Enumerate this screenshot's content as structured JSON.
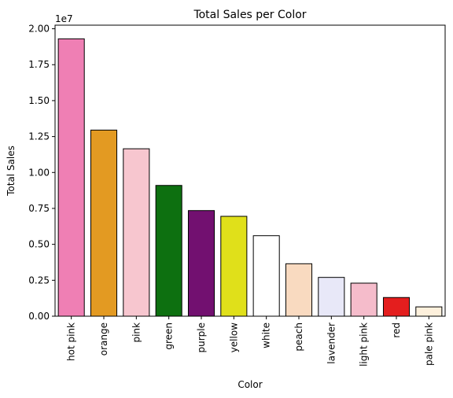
{
  "chart_data": {
    "type": "bar",
    "title": "Total Sales per Color",
    "xlabel": "Color",
    "ylabel": "Total Sales",
    "y_offset_label": "1e7",
    "ylim": [
      0,
      20250000
    ],
    "yticks": [
      0,
      2500000,
      5000000,
      7500000,
      10000000,
      12500000,
      15000000,
      17500000,
      20000000
    ],
    "ytick_labels": [
      "0.00",
      "0.25",
      "0.50",
      "0.75",
      "1.00",
      "1.25",
      "1.50",
      "1.75",
      "2.00"
    ],
    "grid": false,
    "categories": [
      "hot pink",
      "orange",
      "pink",
      "green",
      "purple",
      "yellow",
      "white",
      "peach",
      "lavender",
      "light pink",
      "red",
      "pale pink"
    ],
    "values": [
      19300000,
      12950000,
      11650000,
      9100000,
      7350000,
      6950000,
      5600000,
      3650000,
      2700000,
      2300000,
      1300000,
      650000
    ],
    "colors": [
      "#ef7fb4",
      "#e39a22",
      "#f7c6cf",
      "#0d7010",
      "#721070",
      "#e0e01a",
      "#ffffff",
      "#f9dac0",
      "#e8e8f8",
      "#f5bccb",
      "#e41e1e",
      "#fdf0dc"
    ]
  }
}
